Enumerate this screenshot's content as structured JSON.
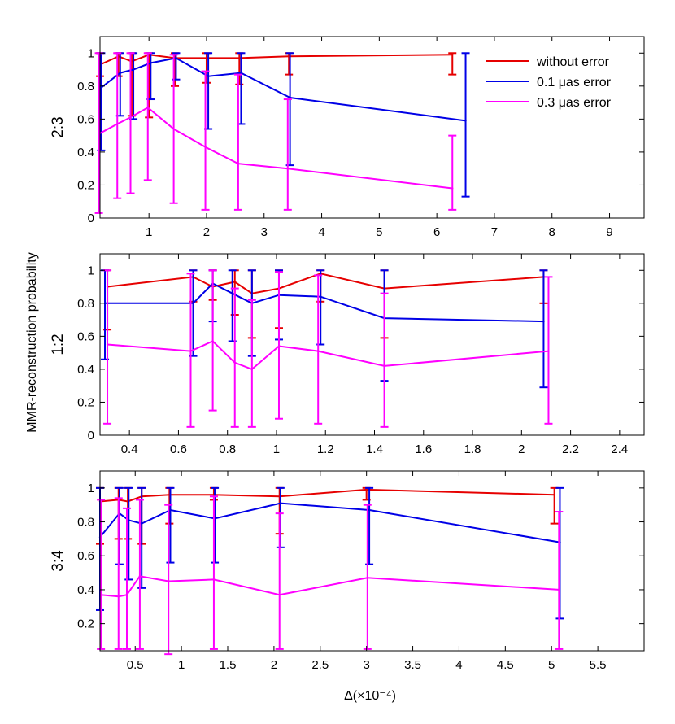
{
  "figure": {
    "ylabel": "MMR-reconstruction probability",
    "xlabel": "Δ(×10⁻⁴)"
  },
  "colors": {
    "without_error": "#e60000",
    "error_0_1": "#0000e6",
    "error_0_3": "#ff00ff",
    "axes": "#000000"
  },
  "legend": {
    "entries": [
      {
        "name": "without error",
        "color_key": "without_error"
      },
      {
        "name": "0.1 μas error",
        "color_key": "error_0_1"
      },
      {
        "name": "0.3 μas error",
        "color_key": "error_0_3"
      }
    ]
  },
  "chart_data": [
    {
      "type": "line",
      "panel_label": "2:3",
      "xlim": [
        0.15,
        9.6
      ],
      "ylim": [
        0,
        1.1
      ],
      "xticks": [
        1,
        2,
        3,
        4,
        5,
        6,
        7,
        8,
        9
      ],
      "xtick_labels": [
        "1",
        "2",
        "3",
        "4",
        "5",
        "6",
        "7",
        "8",
        "9"
      ],
      "yticks": [
        0,
        0.2,
        0.4,
        0.6,
        0.8,
        1
      ],
      "ytick_labels": [
        "0",
        "0.2",
        "0.4",
        "0.6",
        "0.8",
        "1"
      ],
      "show_legend": true,
      "series": [
        {
          "name": "without error",
          "color_key": "without_error",
          "x": [
            0.15,
            0.47,
            0.7,
            1.0,
            1.45,
            2.0,
            2.57,
            3.43,
            6.27
          ],
          "y": [
            0.93,
            0.98,
            0.95,
            0.99,
            0.97,
            0.97,
            0.97,
            0.98,
            0.99
          ],
          "err_low": [
            0.86,
            0.86,
            0.62,
            0.61,
            0.8,
            0.82,
            0.81,
            0.87,
            0.87
          ],
          "err_high": [
            1.0,
            1.0,
            1.0,
            1.0,
            1.0,
            1.0,
            1.0,
            1.0,
            1.0
          ]
        },
        {
          "name": "0.1 μas error",
          "color_key": "error_0_1",
          "x": [
            0.17,
            0.5,
            0.73,
            1.03,
            1.47,
            2.03,
            2.6,
            3.45,
            6.5
          ],
          "y": [
            0.79,
            0.88,
            0.9,
            0.94,
            0.97,
            0.86,
            0.88,
            0.73,
            0.59
          ],
          "err_low": [
            0.41,
            0.62,
            0.6,
            0.72,
            0.84,
            0.54,
            0.57,
            0.32,
            0.13
          ],
          "err_high": [
            1.0,
            1.0,
            1.0,
            1.0,
            1.0,
            1.0,
            1.0,
            1.0,
            1.0
          ]
        },
        {
          "name": "0.3 μas error",
          "color_key": "error_0_3",
          "x": [
            0.13,
            0.45,
            0.68,
            0.98,
            1.43,
            1.98,
            2.55,
            3.41,
            6.27
          ],
          "y": [
            0.51,
            0.57,
            0.61,
            0.67,
            0.54,
            0.43,
            0.33,
            0.3,
            0.18
          ],
          "err_low": [
            0.03,
            0.12,
            0.15,
            0.23,
            0.09,
            0.05,
            0.05,
            0.05,
            0.05
          ],
          "err_high": [
            1.0,
            1.0,
            1.0,
            1.0,
            0.99,
            0.89,
            0.87,
            0.72,
            0.5
          ]
        }
      ]
    },
    {
      "type": "line",
      "panel_label": "1:2",
      "xlim": [
        0.28,
        2.5
      ],
      "ylim": [
        0,
        1.1
      ],
      "xticks": [
        0.4,
        0.6,
        0.8,
        1.0,
        1.2,
        1.4,
        1.6,
        1.8,
        2.0,
        2.2,
        2.4
      ],
      "xtick_labels": [
        "0.4",
        "0.6",
        "0.8",
        "1",
        "1.2",
        "1.4",
        "1.6",
        "1.8",
        "2",
        "2.2",
        "2.4"
      ],
      "yticks": [
        0,
        0.2,
        0.4,
        0.6,
        0.8,
        1
      ],
      "ytick_labels": [
        "0",
        "0.2",
        "0.4",
        "0.6",
        "0.8",
        "1"
      ],
      "show_legend": false,
      "series": [
        {
          "name": "without error",
          "color_key": "without_error",
          "x": [
            0.31,
            0.66,
            0.74,
            0.83,
            0.9,
            1.01,
            1.18,
            1.44,
            2.09
          ],
          "y": [
            0.9,
            0.96,
            0.9,
            0.93,
            0.86,
            0.89,
            0.98,
            0.89,
            0.96
          ],
          "err_low": [
            0.64,
            0.81,
            0.82,
            0.73,
            0.59,
            0.65,
            0.81,
            0.59,
            0.8
          ],
          "err_high": [
            1.0,
            1.0,
            1.0,
            1.0,
            1.0,
            1.0,
            1.0,
            1.0,
            1.0
          ]
        },
        {
          "name": "0.1 μas error",
          "color_key": "error_0_1",
          "x": [
            0.3,
            0.66,
            0.74,
            0.82,
            0.9,
            1.01,
            1.18,
            1.44,
            2.09
          ],
          "y": [
            0.8,
            0.8,
            0.92,
            0.86,
            0.8,
            0.85,
            0.84,
            0.71,
            0.69
          ],
          "err_low": [
            0.46,
            0.48,
            0.69,
            0.57,
            0.48,
            0.58,
            0.55,
            0.33,
            0.29
          ],
          "err_high": [
            1.0,
            1.0,
            1.0,
            1.0,
            1.0,
            1.0,
            1.0,
            1.0,
            1.0
          ]
        },
        {
          "name": "0.3 μas error",
          "color_key": "error_0_3",
          "x": [
            0.31,
            0.65,
            0.74,
            0.83,
            0.9,
            1.01,
            1.17,
            1.44,
            2.11
          ],
          "y": [
            0.55,
            0.51,
            0.57,
            0.44,
            0.4,
            0.54,
            0.51,
            0.42,
            0.51
          ],
          "err_low": [
            0.07,
            0.05,
            0.15,
            0.05,
            0.05,
            0.1,
            0.07,
            0.05,
            0.07
          ],
          "err_high": [
            1.0,
            0.98,
            1.0,
            0.89,
            0.82,
            0.99,
            0.97,
            0.86,
            0.96
          ]
        }
      ]
    },
    {
      "type": "line",
      "panel_label": "3:4",
      "xlim": [
        0.12,
        6.0
      ],
      "ylim": [
        0.04,
        1.1
      ],
      "xticks": [
        0.5,
        1.0,
        1.5,
        2.0,
        2.5,
        3.0,
        3.5,
        4.0,
        4.5,
        5.0,
        5.5
      ],
      "xtick_labels": [
        "0.5",
        "1",
        "1.5",
        "2",
        "2.5",
        "3",
        "3.5",
        "4",
        "4.5",
        "5",
        "5.5"
      ],
      "yticks": [
        0.2,
        0.4,
        0.6,
        0.8,
        1
      ],
      "ytick_labels": [
        "0.2",
        "0.4",
        "0.6",
        "0.8",
        "1"
      ],
      "show_legend": false,
      "series": [
        {
          "name": "without error",
          "color_key": "without_error",
          "x": [
            0.12,
            0.32,
            0.42,
            0.57,
            0.87,
            1.35,
            2.06,
            3.0,
            5.03
          ],
          "y": [
            0.92,
            0.93,
            0.92,
            0.95,
            0.96,
            0.96,
            0.95,
            0.99,
            0.96
          ],
          "err_low": [
            0.67,
            0.7,
            0.7,
            0.67,
            0.79,
            0.93,
            0.73,
            0.93,
            0.79
          ],
          "err_high": [
            1.0,
            1.0,
            1.0,
            1.0,
            1.0,
            1.0,
            1.0,
            1.0,
            1.0
          ]
        },
        {
          "name": "0.1 μas error",
          "color_key": "error_0_1",
          "x": [
            0.12,
            0.33,
            0.43,
            0.57,
            0.88,
            1.36,
            2.07,
            3.03,
            5.09
          ],
          "y": [
            0.71,
            0.85,
            0.81,
            0.79,
            0.87,
            0.82,
            0.91,
            0.87,
            0.68
          ],
          "err_low": [
            0.28,
            0.55,
            0.46,
            0.41,
            0.56,
            0.56,
            0.65,
            0.55,
            0.23
          ],
          "err_high": [
            1.0,
            1.0,
            1.0,
            1.0,
            1.0,
            1.0,
            1.0,
            1.0,
            1.0
          ]
        },
        {
          "name": "0.3 μas error",
          "color_key": "error_0_3",
          "x": [
            0.13,
            0.32,
            0.41,
            0.55,
            0.86,
            1.35,
            2.06,
            3.01,
            5.08
          ],
          "y": [
            0.37,
            0.36,
            0.37,
            0.48,
            0.45,
            0.46,
            0.37,
            0.47,
            0.4
          ],
          "err_low": [
            0.05,
            0.05,
            0.05,
            0.05,
            0.02,
            0.05,
            0.05,
            0.05,
            0.05
          ],
          "err_high": [
            0.93,
            0.94,
            0.88,
            0.93,
            0.9,
            0.95,
            0.85,
            0.9,
            0.86
          ]
        }
      ]
    }
  ]
}
